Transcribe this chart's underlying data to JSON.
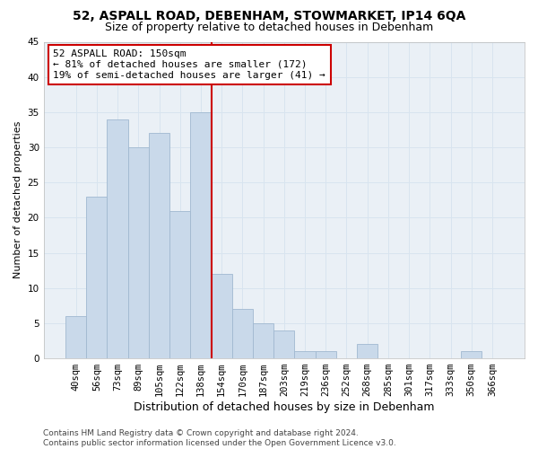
{
  "title1": "52, ASPALL ROAD, DEBENHAM, STOWMARKET, IP14 6QA",
  "title2": "Size of property relative to detached houses in Debenham",
  "xlabel": "Distribution of detached houses by size in Debenham",
  "ylabel": "Number of detached properties",
  "bar_labels": [
    "40sqm",
    "56sqm",
    "73sqm",
    "89sqm",
    "105sqm",
    "122sqm",
    "138sqm",
    "154sqm",
    "170sqm",
    "187sqm",
    "203sqm",
    "219sqm",
    "236sqm",
    "252sqm",
    "268sqm",
    "285sqm",
    "301sqm",
    "317sqm",
    "333sqm",
    "350sqm",
    "366sqm"
  ],
  "bar_values": [
    6,
    23,
    34,
    30,
    32,
    21,
    35,
    12,
    7,
    5,
    4,
    1,
    1,
    0,
    2,
    0,
    0,
    0,
    0,
    1,
    0
  ],
  "bar_color": "#c9d9ea",
  "bar_edgecolor": "#a0b8d0",
  "vline_x": 6.5,
  "vline_color": "#cc0000",
  "annotation_text": "52 ASPALL ROAD: 150sqm\n← 81% of detached houses are smaller (172)\n19% of semi-detached houses are larger (41) →",
  "annotation_box_color": "#ffffff",
  "annotation_box_edgecolor": "#cc0000",
  "ylim": [
    0,
    45
  ],
  "yticks": [
    0,
    5,
    10,
    15,
    20,
    25,
    30,
    35,
    40,
    45
  ],
  "grid_color": "#d8e4ef",
  "background_color": "#eaf0f6",
  "footer_text": "Contains HM Land Registry data © Crown copyright and database right 2024.\nContains public sector information licensed under the Open Government Licence v3.0.",
  "title1_fontsize": 10,
  "title2_fontsize": 9,
  "xlabel_fontsize": 9,
  "ylabel_fontsize": 8,
  "tick_fontsize": 7.5,
  "annotation_fontsize": 8,
  "footer_fontsize": 6.5
}
